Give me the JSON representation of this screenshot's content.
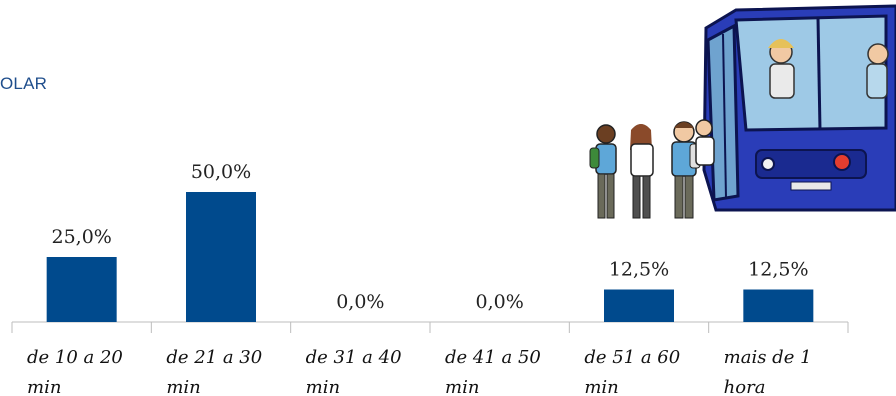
{
  "header": {
    "title_fragment": "OLAR"
  },
  "illustration": {
    "icon": "school-bus-illustration"
  },
  "colors": {
    "bar": "#004a8d",
    "title": "#1f4e8c"
  },
  "chart_data": {
    "type": "bar",
    "title": "",
    "categories": [
      [
        "de 10 a 20",
        "min"
      ],
      [
        "de 21 a 30",
        "min"
      ],
      [
        "de 31 a 40",
        "min"
      ],
      [
        "de 41 a 50",
        "min"
      ],
      [
        "de 51 a 60",
        "min"
      ],
      [
        "mais de 1",
        "hora"
      ]
    ],
    "values": [
      25.0,
      50.0,
      0.0,
      0.0,
      12.5,
      12.5
    ],
    "value_labels": [
      "25,0%",
      "50,0%",
      "0,0%",
      "0,0%",
      "12,5%",
      "12,5%"
    ],
    "ylim": [
      0,
      50
    ],
    "grid": false,
    "legend": "none"
  }
}
